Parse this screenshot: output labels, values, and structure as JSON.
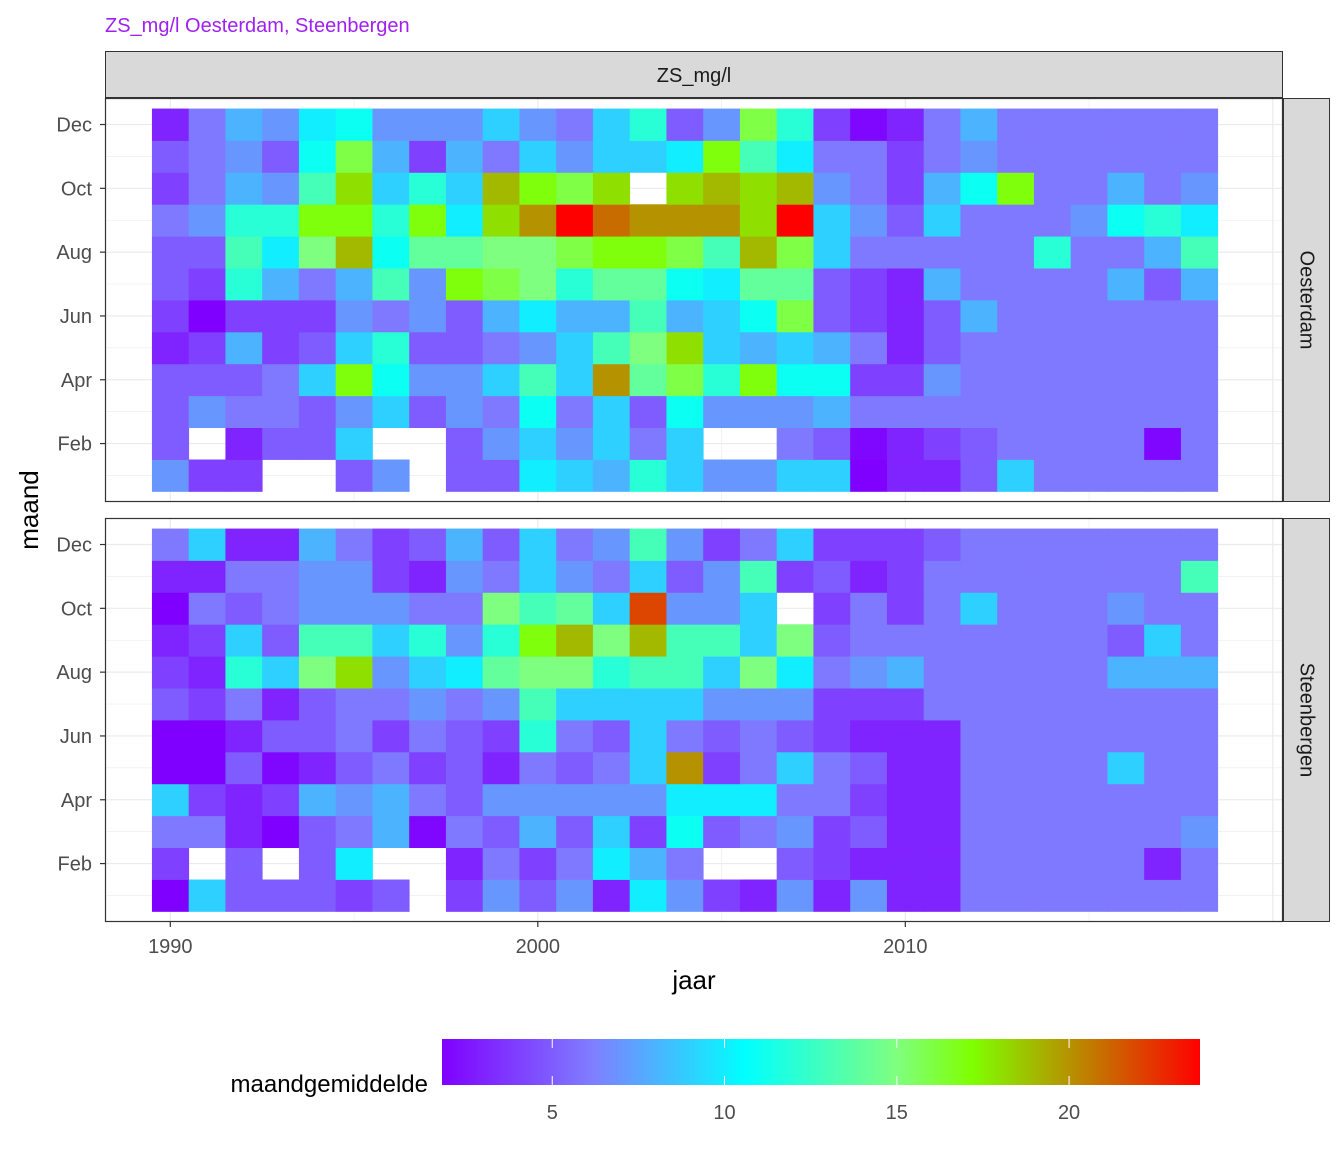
{
  "chart_data": {
    "type": "heatmap",
    "title": "ZS_mg/l Oesterdam, Steenbergen",
    "column_strip": "ZS_mg/l",
    "panels": [
      "Oesterdam",
      "Steenbergen"
    ],
    "xlabel": "jaar",
    "ylabel": "maand",
    "x_ticks": [
      1990,
      2000,
      2010
    ],
    "y_ticks": [
      {
        "label": "Dec",
        "month": 12
      },
      {
        "label": "Oct",
        "month": 10
      },
      {
        "label": "Aug",
        "month": 8
      },
      {
        "label": "Jun",
        "month": 6
      },
      {
        "label": "Apr",
        "month": 4
      },
      {
        "label": "Feb",
        "month": 2
      }
    ],
    "x_range": [
      1988.25,
      2020.25
    ],
    "y_range": [
      0.2,
      12.8
    ],
    "grid": true,
    "legend_position": "bottom",
    "colorbar": {
      "title": "maandgemiddelde",
      "min": 1.8,
      "max": 23.8,
      "ticks": [
        5,
        10,
        15,
        20
      ],
      "colors": [
        "#7f00ff",
        "#7f7fff",
        "#00ffff",
        "#7fff7f",
        "#7fff00",
        "#ff0000"
      ],
      "stops": [
        0,
        0.2,
        0.4,
        0.6,
        0.7,
        1
      ]
    },
    "years": [
      1990,
      1991,
      1992,
      1993,
      1994,
      1995,
      1996,
      1997,
      1998,
      1999,
      2000,
      2001,
      2002,
      2003,
      2004,
      2005,
      2006,
      2007,
      2008,
      2009,
      2010,
      2011,
      2012,
      2013,
      2014,
      2015,
      2016,
      2017,
      2018
    ],
    "months": [
      1,
      2,
      3,
      4,
      5,
      6,
      7,
      8,
      9,
      10,
      11,
      12
    ],
    "series": [
      {
        "name": "Oesterdam",
        "values": [
          [
            7,
            4,
            4,
            null,
            null,
            5,
            7,
            null,
            5,
            5,
            10,
            9,
            8,
            12,
            9,
            7,
            7,
            9,
            9,
            1.8,
            3,
            3,
            5,
            9,
            6,
            6,
            6,
            6,
            6
          ],
          [
            5,
            null,
            3,
            5,
            5,
            9,
            null,
            null,
            5,
            7,
            9,
            7,
            9,
            6,
            9,
            null,
            null,
            6,
            5,
            2,
            3,
            4,
            5,
            6,
            6,
            6,
            6,
            2,
            6
          ],
          [
            5,
            7,
            6,
            6,
            5,
            7,
            9,
            5,
            7,
            6,
            11,
            6,
            9,
            5,
            11,
            7,
            7,
            7,
            8,
            6,
            6,
            6,
            6,
            6,
            6,
            6,
            6,
            6,
            6
          ],
          [
            5,
            5,
            5,
            6,
            9,
            17,
            11,
            7,
            7,
            9,
            13,
            9,
            20,
            14,
            16,
            12,
            17,
            11,
            11,
            4,
            4,
            7,
            6,
            6,
            6,
            6,
            6,
            6,
            6
          ],
          [
            3,
            4,
            8,
            4,
            5,
            9,
            12,
            5,
            5,
            6,
            7,
            9,
            13,
            15,
            18,
            9,
            8,
            9,
            8,
            6,
            3,
            5,
            6,
            6,
            6,
            6,
            6,
            6,
            6
          ],
          [
            4,
            1.8,
            4,
            4,
            4,
            7,
            6,
            7,
            5,
            8,
            10,
            8,
            8,
            13,
            8,
            9,
            11,
            16,
            5,
            4,
            3,
            5,
            8,
            6,
            6,
            6,
            6,
            6,
            6
          ],
          [
            5,
            4,
            12,
            8,
            6,
            8,
            13,
            7,
            17,
            16,
            15,
            12,
            14,
            14,
            11,
            10,
            14,
            14,
            5,
            4,
            3,
            8,
            6,
            6,
            6,
            6,
            8,
            5,
            8
          ],
          [
            5,
            5,
            13,
            10,
            15,
            19,
            11,
            14,
            14,
            15,
            15,
            16,
            17,
            17,
            16,
            13,
            19,
            16,
            9,
            6,
            6,
            6,
            6,
            6,
            12,
            6,
            6,
            8,
            13
          ],
          [
            6,
            7,
            12,
            12,
            17,
            17,
            12,
            17,
            10,
            18,
            20,
            23.8,
            21,
            20,
            20,
            20,
            18,
            23.8,
            9,
            7,
            5,
            9,
            6,
            6,
            6,
            7,
            11,
            12,
            10
          ],
          [
            4,
            6,
            8,
            7,
            13,
            18,
            9,
            12,
            9,
            19,
            17,
            16,
            18,
            null,
            18,
            19,
            18,
            19,
            7,
            6,
            4,
            8,
            11,
            17,
            6,
            6,
            8,
            6,
            7
          ],
          [
            5,
            6,
            7,
            5,
            11,
            16,
            8,
            4,
            8,
            6,
            9,
            7,
            9,
            9,
            10,
            17,
            13,
            10,
            6,
            6,
            4,
            6,
            7,
            6,
            6,
            6,
            6,
            6,
            6
          ],
          [
            3,
            6,
            8,
            7,
            10,
            11,
            7,
            7,
            7,
            9,
            7,
            6,
            9,
            12,
            5,
            7,
            16,
            12,
            4,
            2,
            3,
            6,
            8,
            6,
            6,
            6,
            6,
            6,
            6
          ]
        ]
      },
      {
        "name": "Steenbergen",
        "values": [
          [
            1.8,
            9,
            5,
            5,
            5,
            4,
            5,
            null,
            4,
            7,
            5,
            7,
            3,
            10,
            7,
            4,
            3,
            7,
            3,
            7,
            3,
            3,
            6,
            6,
            6,
            6,
            6,
            6,
            6
          ],
          [
            4,
            null,
            5,
            null,
            5,
            10,
            null,
            null,
            3,
            6,
            4,
            6,
            10,
            8,
            6,
            null,
            null,
            5,
            4,
            3,
            3,
            3,
            6,
            6,
            6,
            6,
            6,
            3,
            6
          ],
          [
            6,
            6,
            3,
            1.8,
            5,
            6,
            8,
            2,
            6,
            5,
            8,
            5,
            9,
            4,
            11,
            5,
            6,
            7,
            4,
            5,
            3,
            3,
            6,
            6,
            6,
            6,
            6,
            6,
            7
          ],
          [
            9,
            4,
            3,
            4,
            8,
            7,
            8,
            6,
            5,
            7,
            7,
            7,
            7,
            7,
            10,
            10,
            10,
            6,
            6,
            4,
            3,
            3,
            6,
            6,
            6,
            6,
            6,
            6,
            6
          ],
          [
            1.8,
            1.8,
            5,
            2,
            3,
            5,
            6,
            4,
            5,
            3,
            6,
            5,
            6,
            9,
            20,
            4,
            6,
            9,
            6,
            5,
            3,
            3,
            6,
            6,
            6,
            6,
            9,
            6,
            6
          ],
          [
            1.8,
            1.8,
            3,
            5,
            5,
            6,
            4,
            6,
            5,
            4,
            12,
            6,
            5,
            9,
            6,
            5,
            6,
            5,
            4,
            3,
            3,
            3,
            6,
            6,
            6,
            6,
            6,
            6,
            6
          ],
          [
            5,
            4,
            6,
            3,
            5,
            6,
            6,
            7,
            6,
            7,
            13,
            9,
            9,
            9,
            9,
            7,
            7,
            7,
            4,
            4,
            4,
            6,
            6,
            6,
            6,
            6,
            6,
            6,
            6
          ],
          [
            4,
            3,
            12,
            9,
            15,
            18,
            7,
            9,
            10,
            14,
            15,
            15,
            12,
            13,
            13,
            9,
            15,
            10,
            6,
            7,
            8,
            6,
            6,
            6,
            6,
            6,
            8,
            8,
            8
          ],
          [
            3,
            4,
            9,
            5,
            13,
            13,
            9,
            12,
            7,
            12,
            17,
            19,
            15,
            19,
            13,
            13,
            9,
            15,
            5,
            6,
            6,
            6,
            6,
            6,
            6,
            6,
            5,
            9,
            6
          ],
          [
            1.8,
            6,
            5,
            6,
            7,
            7,
            7,
            6,
            6,
            15,
            13,
            14,
            9,
            22,
            7,
            7,
            9,
            null,
            4,
            6,
            4,
            6,
            9,
            6,
            6,
            6,
            7,
            6,
            6
          ],
          [
            3,
            3,
            6,
            6,
            7,
            7,
            4,
            3,
            7,
            6,
            9,
            7,
            6,
            9,
            5,
            7,
            13,
            4,
            5,
            3,
            4,
            6,
            6,
            6,
            6,
            6,
            6,
            6,
            13
          ],
          [
            6,
            9,
            3,
            3,
            8,
            6,
            4,
            5,
            8,
            5,
            9,
            6,
            7,
            13,
            7,
            4,
            6,
            9,
            4,
            4,
            4,
            5,
            6,
            6,
            6,
            6,
            6,
            6,
            6
          ]
        ]
      }
    ]
  }
}
